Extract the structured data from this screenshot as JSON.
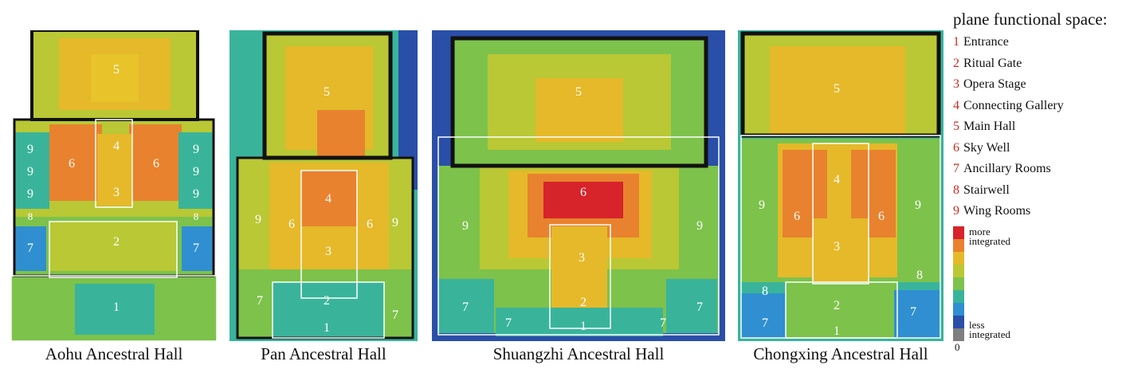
{
  "legend": {
    "title": "plane functional space:",
    "items": [
      {
        "num": "1",
        "label": "Entrance"
      },
      {
        "num": "2",
        "label": "Ritual Gate"
      },
      {
        "num": "3",
        "label": "Opera Stage"
      },
      {
        "num": "4",
        "label": "Connecting Gallery"
      },
      {
        "num": "5",
        "label": "Main Hall"
      },
      {
        "num": "6",
        "label": "Sky Well"
      },
      {
        "num": "7",
        "label": "Ancillary Rooms"
      },
      {
        "num": "8",
        "label": "Stairwell"
      },
      {
        "num": "9",
        "label": "Wing Rooms"
      }
    ],
    "scale_top": "more integrated",
    "scale_top_line1": "more",
    "scale_top_line2": "integrated",
    "scale_bottom_line1": "less",
    "scale_bottom_line2": "integrated",
    "scale_zero": "0",
    "scale_colors": [
      "#d7232a",
      "#e8822e",
      "#e5b92a",
      "#b9c834",
      "#7dc24b",
      "#39b49b",
      "#2f8fd0",
      "#2a4fa8",
      "#7f7f7f"
    ]
  },
  "halls": [
    {
      "name": "Aohu Ancestral Hall"
    },
    {
      "name": "Pan Ancestral Hall"
    },
    {
      "name": "Shuangzhi Ancestral Hall"
    },
    {
      "name": "Chongxing Ancestral Hall"
    }
  ]
}
